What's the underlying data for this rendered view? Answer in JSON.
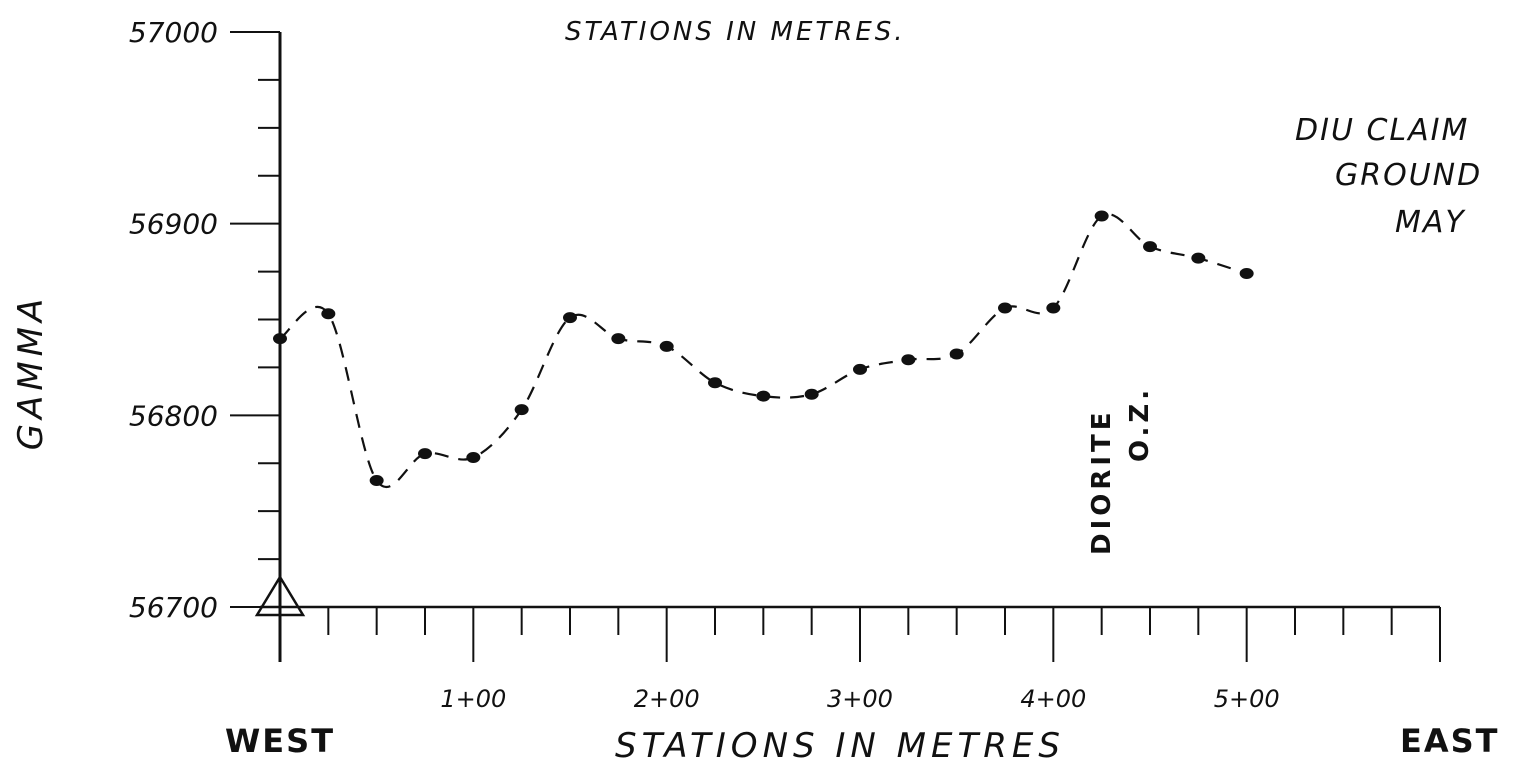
{
  "chart_data": {
    "type": "line",
    "title": "STATIONS IN METRES.",
    "xlabel": "STATIONS IN METRES",
    "ylabel": "GAMMA",
    "x_left_label": "WEST",
    "x_right_label": "EAST",
    "side_note_lines": [
      "DIU CLAIM",
      "GROUND",
      "MAY"
    ],
    "annotation": {
      "text_line1": "DIORITE",
      "text_line2": "O.Z.",
      "x": 4125
    },
    "yticks": [
      "57000",
      "56900",
      "56800",
      "56700"
    ],
    "ytick_values": [
      57000,
      56900,
      56800,
      56700
    ],
    "xticks": [
      "1+00",
      "2+00",
      "3+00",
      "4+00",
      "5+00"
    ],
    "xtick_values": [
      1000,
      2000,
      3000,
      4000,
      5000
    ],
    "xlim": [
      0,
      6000
    ],
    "ylim": [
      56700,
      57000
    ],
    "minor_tick_step_x": 250,
    "minor_tick_step_y": 25,
    "grid": false,
    "series": [
      {
        "values_x": [
          0,
          250,
          500,
          750,
          1000,
          1250,
          1500,
          1750,
          2000,
          2250,
          2500,
          2750,
          3000,
          3250,
          3500,
          3750,
          4000,
          4250,
          4500,
          4750,
          5000
        ],
        "values_y": [
          56840,
          56853,
          56766,
          56780,
          56778,
          56803,
          56851,
          56840,
          56836,
          56817,
          56810,
          56811,
          56824,
          56829,
          56832,
          56856,
          56856,
          56904,
          56888,
          56882,
          56874
        ]
      }
    ]
  }
}
